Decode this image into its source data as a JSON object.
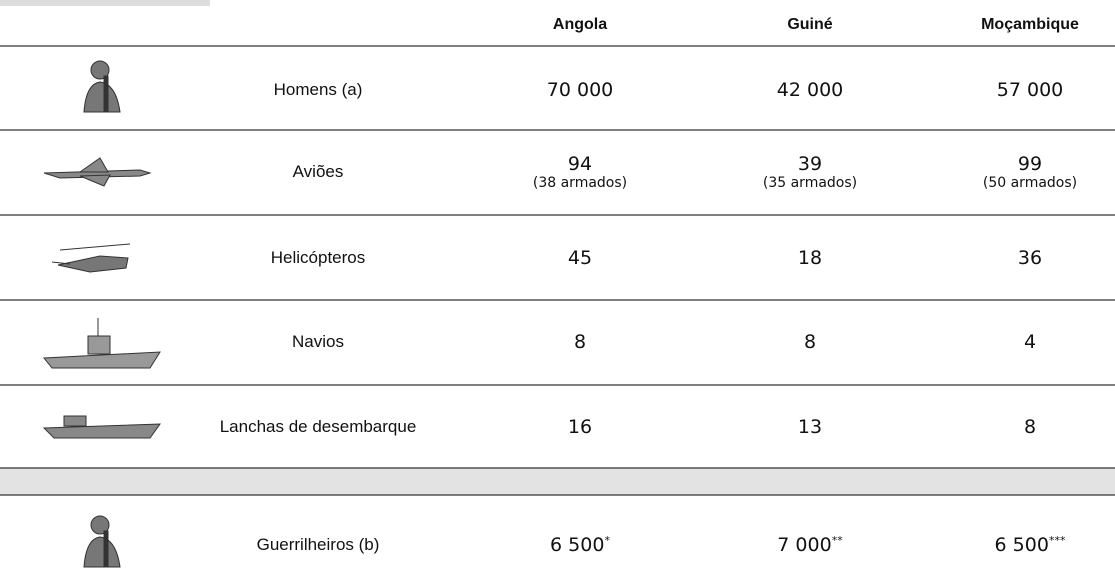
{
  "header": {
    "columns": [
      "Angola",
      "Guiné",
      "Moçambique"
    ]
  },
  "rows": [
    {
      "label": "Homens (a)",
      "values": [
        "70 000",
        "42 000",
        "57 000"
      ]
    },
    {
      "label": "Aviões",
      "values": [
        "94",
        "39",
        "99"
      ],
      "notes": [
        "(38 armados)",
        "(35 armados)",
        "(50 armados)"
      ]
    },
    {
      "label": "Helicópteros",
      "values": [
        "45",
        "18",
        "36"
      ]
    },
    {
      "label": "Navios",
      "values": [
        "8",
        "8",
        "4"
      ]
    },
    {
      "label": "Lanchas de desembarque",
      "values": [
        "16",
        "13",
        "8"
      ]
    },
    {
      "label": "Guerrilheiros (b)",
      "values": [
        "6 500",
        "7 000",
        "6 500"
      ],
      "marks": [
        "*",
        "**",
        "***"
      ]
    }
  ]
}
